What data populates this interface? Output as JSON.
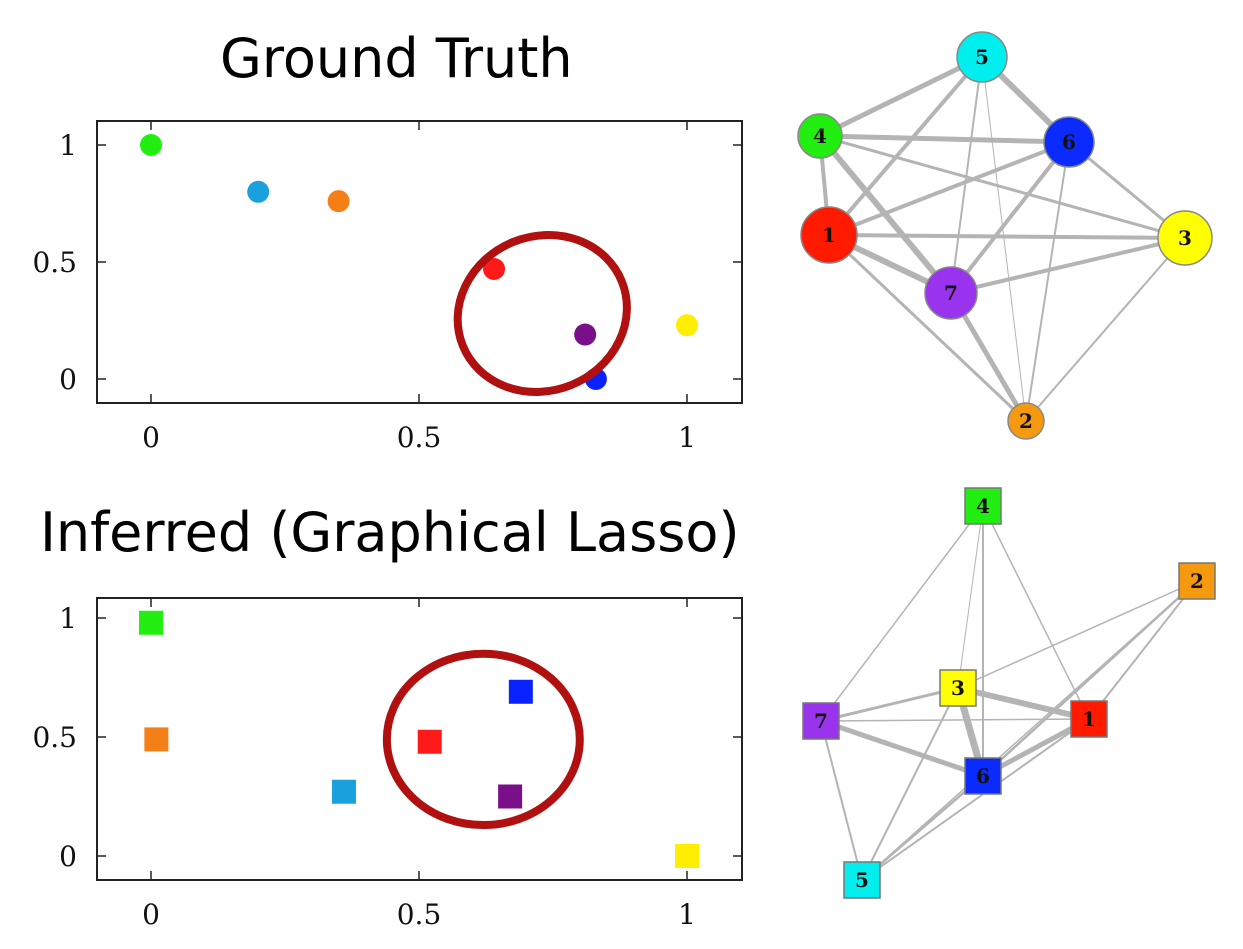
{
  "titles": {
    "ground_truth": "Ground Truth",
    "inferred": "Inferred (Graphical Lasso)"
  },
  "chart_data": [
    {
      "id": "gt-scatter",
      "type": "scatter",
      "marker": "circle",
      "xlim": [
        -0.1,
        1.1
      ],
      "ylim": [
        -0.1,
        1.1
      ],
      "xticks": [
        0,
        0.5,
        1
      ],
      "yticks": [
        0,
        0.5,
        1
      ],
      "tick_labels": {
        "x": [
          "0",
          "0.5",
          "1"
        ],
        "y": [
          "0",
          "0.5",
          "1"
        ]
      },
      "points": [
        {
          "x": 0.0,
          "y": 1.0,
          "color": "#22ee11"
        },
        {
          "x": 0.2,
          "y": 0.8,
          "color": "#1aa0dd"
        },
        {
          "x": 0.35,
          "y": 0.76,
          "color": "#f57f17"
        },
        {
          "x": 0.64,
          "y": 0.47,
          "color": "#ff1a1a"
        },
        {
          "x": 0.81,
          "y": 0.19,
          "color": "#7a0f8a"
        },
        {
          "x": 0.83,
          "y": 0.0,
          "color": "#0a22ff"
        },
        {
          "x": 1.0,
          "y": 0.23,
          "color": "#ffee00"
        }
      ],
      "highlight": {
        "shape": "ellipse",
        "color": "#b01010",
        "cx": 0.73,
        "cy": 0.28,
        "rx": 0.16,
        "ry": 0.33,
        "rotation_deg": -22
      }
    },
    {
      "id": "inf-scatter",
      "type": "scatter",
      "marker": "square",
      "xlim": [
        -0.1,
        1.1
      ],
      "ylim": [
        -0.1,
        1.1
      ],
      "xticks": [
        0,
        0.5,
        1
      ],
      "yticks": [
        0,
        0.5,
        1
      ],
      "tick_labels": {
        "x": [
          "0",
          "0.5",
          "1"
        ],
        "y": [
          "0",
          "0.5",
          "1"
        ]
      },
      "points": [
        {
          "x": 0.0,
          "y": 0.98,
          "color": "#22ee11"
        },
        {
          "x": 0.01,
          "y": 0.49,
          "color": "#f57f17"
        },
        {
          "x": 0.36,
          "y": 0.27,
          "color": "#1aa0dd"
        },
        {
          "x": 0.52,
          "y": 0.48,
          "color": "#ff1a1a"
        },
        {
          "x": 0.67,
          "y": 0.25,
          "color": "#7a0f8a"
        },
        {
          "x": 0.69,
          "y": 0.69,
          "color": "#0a22ff"
        },
        {
          "x": 1.0,
          "y": 0.0,
          "color": "#ffee00"
        }
      ],
      "highlight": {
        "shape": "circle",
        "color": "#b01010",
        "cx": 0.62,
        "cy": 0.49,
        "rx": 0.18,
        "ry": 0.36,
        "rotation_deg": 0
      }
    }
  ],
  "graphs": [
    {
      "id": "gt-graph",
      "shape": "circle",
      "edge_color": "#b4b4b4",
      "nodes": [
        {
          "label": "1",
          "color": "#ff1a00"
        },
        {
          "label": "2",
          "color": "#f59a0f"
        },
        {
          "label": "3",
          "color": "#ffff00"
        },
        {
          "label": "4",
          "color": "#22ee11"
        },
        {
          "label": "5",
          "color": "#00eeee"
        },
        {
          "label": "6",
          "color": "#0a2aff"
        },
        {
          "label": "7",
          "color": "#9933ee"
        }
      ],
      "edges": [
        {
          "a": "5",
          "b": "4",
          "w": 5
        },
        {
          "a": "5",
          "b": "6",
          "w": 6
        },
        {
          "a": "5",
          "b": "1",
          "w": 4
        },
        {
          "a": "5",
          "b": "7",
          "w": 2
        },
        {
          "a": "5",
          "b": "2",
          "w": 1
        },
        {
          "a": "4",
          "b": "6",
          "w": 5
        },
        {
          "a": "4",
          "b": "1",
          "w": 4
        },
        {
          "a": "4",
          "b": "7",
          "w": 6
        },
        {
          "a": "4",
          "b": "3",
          "w": 3
        },
        {
          "a": "6",
          "b": "1",
          "w": 4
        },
        {
          "a": "6",
          "b": "7",
          "w": 4
        },
        {
          "a": "6",
          "b": "3",
          "w": 3
        },
        {
          "a": "6",
          "b": "2",
          "w": 2
        },
        {
          "a": "1",
          "b": "3",
          "w": 4
        },
        {
          "a": "1",
          "b": "7",
          "w": 6
        },
        {
          "a": "1",
          "b": "2",
          "w": 3
        },
        {
          "a": "7",
          "b": "3",
          "w": 4
        },
        {
          "a": "7",
          "b": "2",
          "w": 5
        },
        {
          "a": "3",
          "b": "2",
          "w": 2
        }
      ]
    },
    {
      "id": "inf-graph",
      "shape": "square",
      "edge_color": "#b4b4b4",
      "nodes": [
        {
          "label": "4",
          "color": "#22ee11"
        },
        {
          "label": "2",
          "color": "#f59a0f"
        },
        {
          "label": "3",
          "color": "#ffff00"
        },
        {
          "label": "7",
          "color": "#9933ee"
        },
        {
          "label": "1",
          "color": "#ff1a00"
        },
        {
          "label": "6",
          "color": "#0a2aff"
        },
        {
          "label": "5",
          "color": "#00eeee"
        }
      ],
      "edges": [
        {
          "a": "4",
          "b": "7",
          "w": 1.5
        },
        {
          "a": "4",
          "b": "6",
          "w": 2
        },
        {
          "a": "4",
          "b": "1",
          "w": 1.5
        },
        {
          "a": "4",
          "b": "3",
          "w": 1
        },
        {
          "a": "2",
          "b": "3",
          "w": 1.5
        },
        {
          "a": "2",
          "b": "1",
          "w": 2
        },
        {
          "a": "2",
          "b": "6",
          "w": 2.5
        },
        {
          "a": "2",
          "b": "5",
          "w": 1.5
        },
        {
          "a": "3",
          "b": "7",
          "w": 3
        },
        {
          "a": "3",
          "b": "1",
          "w": 6
        },
        {
          "a": "3",
          "b": "6",
          "w": 7
        },
        {
          "a": "3",
          "b": "5",
          "w": 2
        },
        {
          "a": "7",
          "b": "1",
          "w": 1.5
        },
        {
          "a": "7",
          "b": "6",
          "w": 5
        },
        {
          "a": "7",
          "b": "5",
          "w": 2
        },
        {
          "a": "1",
          "b": "6",
          "w": 5
        },
        {
          "a": "1",
          "b": "5",
          "w": 2
        },
        {
          "a": "6",
          "b": "5",
          "w": 2.5
        }
      ]
    }
  ]
}
